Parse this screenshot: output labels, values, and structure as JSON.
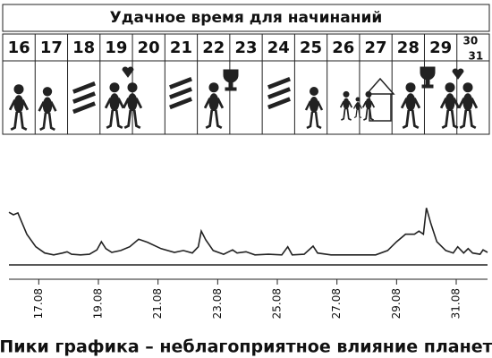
{
  "header": {
    "title": "Удачное время для начинаний",
    "days": [
      "16",
      "17",
      "18",
      "19",
      "20",
      "21",
      "22",
      "23",
      "24",
      "25",
      "26",
      "27",
      "28",
      "29",
      "30",
      "31"
    ]
  },
  "chart_data": {
    "type": "line",
    "caption": "Пики графика – неблагоприятное влияние планет",
    "color": "#222222",
    "x": [
      16.0,
      16.15,
      16.3,
      16.45,
      16.6,
      16.9,
      17.2,
      17.5,
      17.8,
      17.95,
      18.1,
      18.4,
      18.7,
      18.95,
      19.1,
      19.25,
      19.45,
      19.75,
      20.05,
      20.35,
      20.65,
      21.1,
      21.55,
      21.85,
      22.15,
      22.35,
      22.45,
      22.6,
      22.85,
      23.2,
      23.5,
      23.65,
      23.95,
      24.25,
      24.7,
      25.15,
      25.35,
      25.5,
      25.9,
      26.2,
      26.35,
      26.8,
      27.4,
      28.3,
      28.7,
      29.0,
      29.3,
      29.6,
      29.75,
      29.9,
      30.0,
      30.15,
      30.35,
      30.65,
      30.9,
      31.05,
      31.25,
      31.4,
      31.55,
      31.8,
      31.9,
      32.05
    ],
    "values": [
      84,
      80,
      83,
      66,
      49,
      29,
      19,
      16,
      19,
      21,
      17,
      16,
      17,
      24,
      37,
      26,
      20,
      23,
      29,
      41,
      36,
      26,
      20,
      23,
      19,
      29,
      54,
      40,
      23,
      17,
      24,
      19,
      21,
      16,
      17,
      16,
      29,
      16,
      17,
      30,
      19,
      16,
      16,
      16,
      23,
      37,
      49,
      49,
      54,
      49,
      91,
      66,
      37,
      23,
      19,
      29,
      19,
      26,
      19,
      17,
      24,
      20
    ],
    "xlim": [
      16,
      32.05
    ],
    "ylim": [
      0,
      100
    ],
    "xticks": [
      {
        "value": 17,
        "label": "17.08"
      },
      {
        "value": 19,
        "label": "19.08"
      },
      {
        "value": 21,
        "label": "21.08"
      },
      {
        "value": 23,
        "label": "23.08"
      },
      {
        "value": 25,
        "label": "25.08"
      },
      {
        "value": 27,
        "label": "27.08"
      },
      {
        "value": 29,
        "label": "29.08"
      },
      {
        "value": 31,
        "label": "31.08"
      }
    ]
  }
}
